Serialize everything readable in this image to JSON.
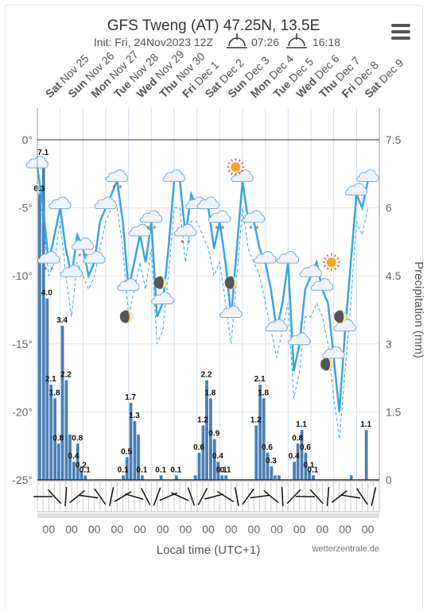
{
  "header": {
    "title": "GFS Tweng (AT) 47.25N, 13.5E",
    "init_text": "Init: Fri, 24Nov2023 12Z",
    "sunrise": "07:26",
    "sunset": "16:18"
  },
  "footer": {
    "xlabel": "Local time (UTC+1)",
    "credit": "wetterzentrale.de"
  },
  "colors": {
    "temp": "#3aa3e3",
    "precip": "#4a7fb5",
    "grid": "#cfdfee",
    "axis": "#333333",
    "sun": "#f5a623"
  },
  "icons": [
    "cloud-icon",
    "sun-icon",
    "moon-icon",
    "snow-icon",
    "sunrise-icon",
    "sunset-icon",
    "menu-icon"
  ],
  "chart_data": {
    "type": "line",
    "days": [
      {
        "dow": "Sat",
        "date": "Nov 25"
      },
      {
        "dow": "Sun",
        "date": "Nov 26"
      },
      {
        "dow": "Mon",
        "date": "Nov 27"
      },
      {
        "dow": "Tue",
        "date": "Nov 28"
      },
      {
        "dow": "Wed",
        "date": "Nov 29"
      },
      {
        "dow": "Thu",
        "date": "Nov 30"
      },
      {
        "dow": "Fri",
        "date": "Dec 1"
      },
      {
        "dow": "Sat",
        "date": "Dec 2"
      },
      {
        "dow": "Sun",
        "date": "Dec 3"
      },
      {
        "dow": "Mon",
        "date": "Dec 4"
      },
      {
        "dow": "Tue",
        "date": "Dec 5"
      },
      {
        "dow": "Wed",
        "date": "Dec 6"
      },
      {
        "dow": "Thu",
        "date": "Dec 7"
      },
      {
        "dow": "Fri",
        "date": "Dec 8"
      },
      {
        "dow": "Sat",
        "date": "Dec 9"
      }
    ],
    "x_tick_labels": [
      "00",
      "00",
      "00",
      "00",
      "00",
      "00",
      "00",
      "00",
      "00",
      "00",
      "00",
      "00",
      "00",
      "00",
      "00"
    ],
    "y_left": {
      "ticks": [
        "0°",
        "-5°",
        "-10°",
        "-15°",
        "-20°",
        "-25°"
      ],
      "values": [
        0,
        -5,
        -10,
        -15,
        -20,
        -25
      ],
      "range": [
        -25,
        0
      ]
    },
    "y_right": {
      "ticks": [
        "7.5",
        "6",
        "4.5",
        "3",
        "1.5",
        "0"
      ],
      "values": [
        7.5,
        6,
        4.5,
        3,
        1.5,
        0
      ],
      "range": [
        0,
        7.5
      ],
      "label": "Precipitation (mm)"
    },
    "series": [
      {
        "kind": "temperature",
        "x": [
          0,
          0.25,
          0.5,
          0.75,
          1,
          1.25,
          1.5,
          1.75,
          2,
          2.25,
          2.5,
          2.75,
          3,
          3.25,
          3.5,
          3.75,
          4,
          4.25,
          4.5,
          4.75,
          5,
          5.25,
          5.5,
          5.75,
          6,
          6.25,
          6.5,
          6.75,
          7,
          7.25,
          7.5,
          7.75,
          8,
          8.25,
          8.5,
          8.75,
          9,
          9.25,
          9.5,
          9.75,
          10,
          10.25,
          10.5,
          10.75,
          11,
          11.25,
          11.5,
          11.75,
          12,
          12.25,
          12.5,
          12.75,
          13,
          13.25,
          13.5,
          13.75,
          14,
          14.25,
          14.5
        ],
        "y": [
          -2,
          -5,
          -9,
          -7,
          -5,
          -8,
          -10,
          -7,
          -8,
          -10,
          -9,
          -6,
          -5,
          -4,
          -3,
          -6,
          -11,
          -9,
          -7,
          -9,
          -6,
          -13,
          -12,
          -8,
          -3,
          -3,
          -7,
          -4,
          -5,
          -5,
          -5,
          -8,
          -6,
          -9,
          -13,
          -8,
          -3,
          -6,
          -6,
          -8,
          -9,
          -11,
          -14,
          -12,
          -9,
          -17,
          -15,
          -11,
          -10,
          -9,
          -11,
          -12,
          -16,
          -20,
          -14,
          -9,
          -4,
          -5,
          -3
        ]
      },
      {
        "kind": "temperature-min-dashed",
        "x": [
          0,
          0.25,
          0.5,
          0.75,
          1,
          1.25,
          1.5,
          1.75,
          2,
          2.25,
          2.5,
          2.75,
          3,
          3.25,
          3.5,
          3.75,
          4,
          4.25,
          4.5,
          4.75,
          5,
          5.25,
          5.5,
          5.75,
          6,
          6.25,
          6.5,
          6.75,
          7,
          7.25,
          7.5,
          7.75,
          8,
          8.25,
          8.5,
          8.75,
          9,
          9.25,
          9.5,
          9.75,
          10,
          10.25,
          10.5,
          10.75,
          11,
          11.25,
          11.5,
          11.75,
          12,
          12.25,
          12.5,
          12.75,
          13,
          13.25,
          13.5,
          13.75,
          14,
          14.25,
          14.5
        ],
        "y": [
          -3,
          -6,
          -10,
          -9,
          -6,
          -10,
          -13,
          -9,
          -10,
          -11,
          -10,
          -8,
          -6,
          -5,
          -5,
          -8,
          -13,
          -11,
          -9,
          -11,
          -8,
          -15,
          -14,
          -10,
          -5,
          -5,
          -9,
          -6,
          -6,
          -7,
          -8,
          -10,
          -9,
          -12,
          -15,
          -10,
          -5,
          -8,
          -9,
          -10,
          -12,
          -14,
          -16,
          -14,
          -12,
          -19,
          -17,
          -13,
          -13,
          -12,
          -13,
          -15,
          -19,
          -22,
          -17,
          -12,
          -6,
          -7,
          -5
        ]
      },
      {
        "kind": "precipitation",
        "x": [
          0,
          0.17,
          0.33,
          0.5,
          0.67,
          0.83,
          1,
          1.17,
          1.33,
          1.5,
          1.67,
          1.83,
          2,
          3.67,
          3.83,
          4,
          4.17,
          4.33,
          4.5,
          5.33,
          6,
          6.83,
          7,
          7.17,
          7.33,
          7.5,
          7.67,
          7.83,
          8,
          8.17,
          9.5,
          9.67,
          9.83,
          10,
          10.17,
          10.33,
          10.5,
          11.17,
          11.33,
          11.5,
          11.67,
          11.83,
          12,
          12,
          13.67,
          14.33
        ],
        "values": [
          6.3,
          7.1,
          4.0,
          2.1,
          1.8,
          0.8,
          3.4,
          2.2,
          1.0,
          0.4,
          0.8,
          0.2,
          0.1,
          0.1,
          0.5,
          1.7,
          1.3,
          1.0,
          0.1,
          0.1,
          0.1,
          0.1,
          0.6,
          1.2,
          2.2,
          1.8,
          0.9,
          0.4,
          0.1,
          0.1,
          1.2,
          2.1,
          1.8,
          0.6,
          0.3,
          0.1,
          0.1,
          0.4,
          0.8,
          1.1,
          0.6,
          0.2,
          0.1,
          0.1,
          0.1,
          1.1
        ]
      }
    ],
    "precip_labels": [
      "6.3",
      "7.1",
      "4.0",
      "2.1",
      "1.8",
      "0.8",
      "3.4",
      "2.2",
      "0.4",
      "0.8",
      "0.2",
      "0.1",
      "0.1",
      "0.5",
      "1.7",
      "1.3",
      "0.1",
      "0.1",
      "0.1",
      "0.6",
      "1.2",
      "2.2",
      "1.8",
      "0.9",
      "0.4",
      "0.1",
      "0.1",
      "1.2",
      "2.1",
      "1.8",
      "0.6",
      "0.3",
      "0.4",
      "0.8",
      "1.1",
      "0.6",
      "0.1",
      "0.1",
      "1.1"
    ],
    "legend": "none",
    "grid": true
  }
}
